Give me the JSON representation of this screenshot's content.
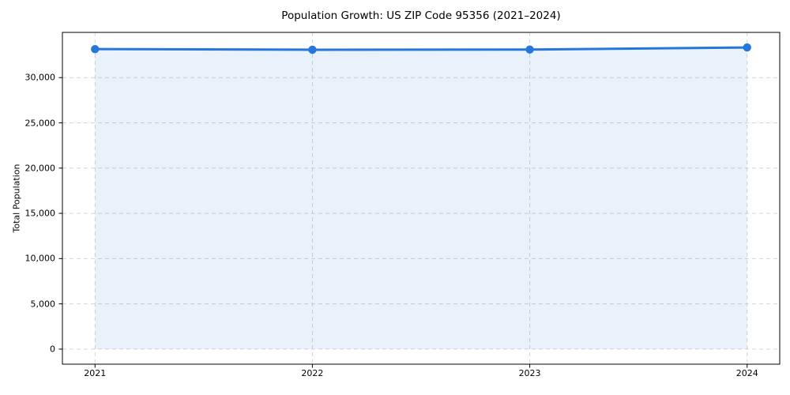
{
  "chart_data": {
    "type": "area",
    "title": "Population Growth: US ZIP Code 95356 (2021–2024)",
    "xlabel": "",
    "ylabel": "Total Population",
    "categories": [
      2021,
      2022,
      2023,
      2024
    ],
    "x_tick_labels": [
      "2021",
      "2022",
      "2023",
      "2024"
    ],
    "series": [
      {
        "name": "Total Population",
        "values": [
          33150,
          33080,
          33100,
          33330
        ]
      }
    ],
    "y_ticks": [
      0,
      5000,
      10000,
      15000,
      20000,
      25000,
      30000
    ],
    "y_tick_labels": [
      "0",
      "5,000",
      "10,000",
      "15,000",
      "20,000",
      "25,000",
      "30,000"
    ],
    "xlim": [
      2020.85,
      2024.15
    ],
    "ylim": [
      -1666,
      34996
    ],
    "fill_to": 0,
    "grid": true,
    "grid_style": "dashed",
    "legend": "none",
    "marker": "circle",
    "line_width": 3,
    "marker_radius": 5.2,
    "colors": {
      "line": "#2577dc",
      "marker": "#2577dc",
      "fill": "rgba(37, 119, 220, 0.10)",
      "grid": "#d4d4d4",
      "spine": "#000000",
      "text": "#000000",
      "background": "#ffffff"
    }
  }
}
